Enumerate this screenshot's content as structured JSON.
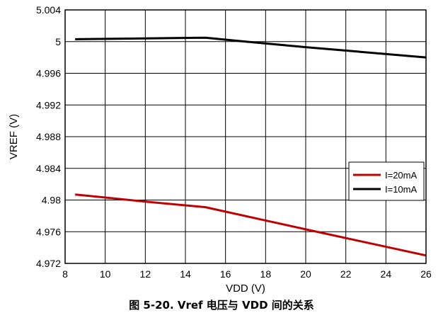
{
  "caption": "图 5-20. Vref 电压与 VDD 间的关系",
  "chart_data": {
    "type": "line",
    "title": "",
    "xlabel": "VDD (V)",
    "ylabel": "VREF (V)",
    "xlim": [
      8,
      26
    ],
    "ylim": [
      4.972,
      5.004
    ],
    "xticks": [
      "8",
      "10",
      "12",
      "14",
      "16",
      "18",
      "20",
      "22",
      "24",
      "26"
    ],
    "yticks": [
      "5.004",
      "5",
      "4.996",
      "4.992",
      "4.988",
      "4.984",
      "4.98",
      "4.976",
      "4.972"
    ],
    "grid": true,
    "legend_position": "lower-right",
    "series": [
      {
        "name": "I=20mA",
        "color": "#c00000",
        "x": [
          8.5,
          12,
          15,
          20,
          26
        ],
        "y": [
          4.9807,
          4.9798,
          4.9791,
          4.9763,
          4.973
        ]
      },
      {
        "name": "I=10mA",
        "color": "#000000",
        "x": [
          8.5,
          12,
          15,
          17,
          20,
          26
        ],
        "y": [
          5.0003,
          5.0004,
          5.0005,
          5.0,
          4.9993,
          4.998
        ]
      }
    ]
  }
}
